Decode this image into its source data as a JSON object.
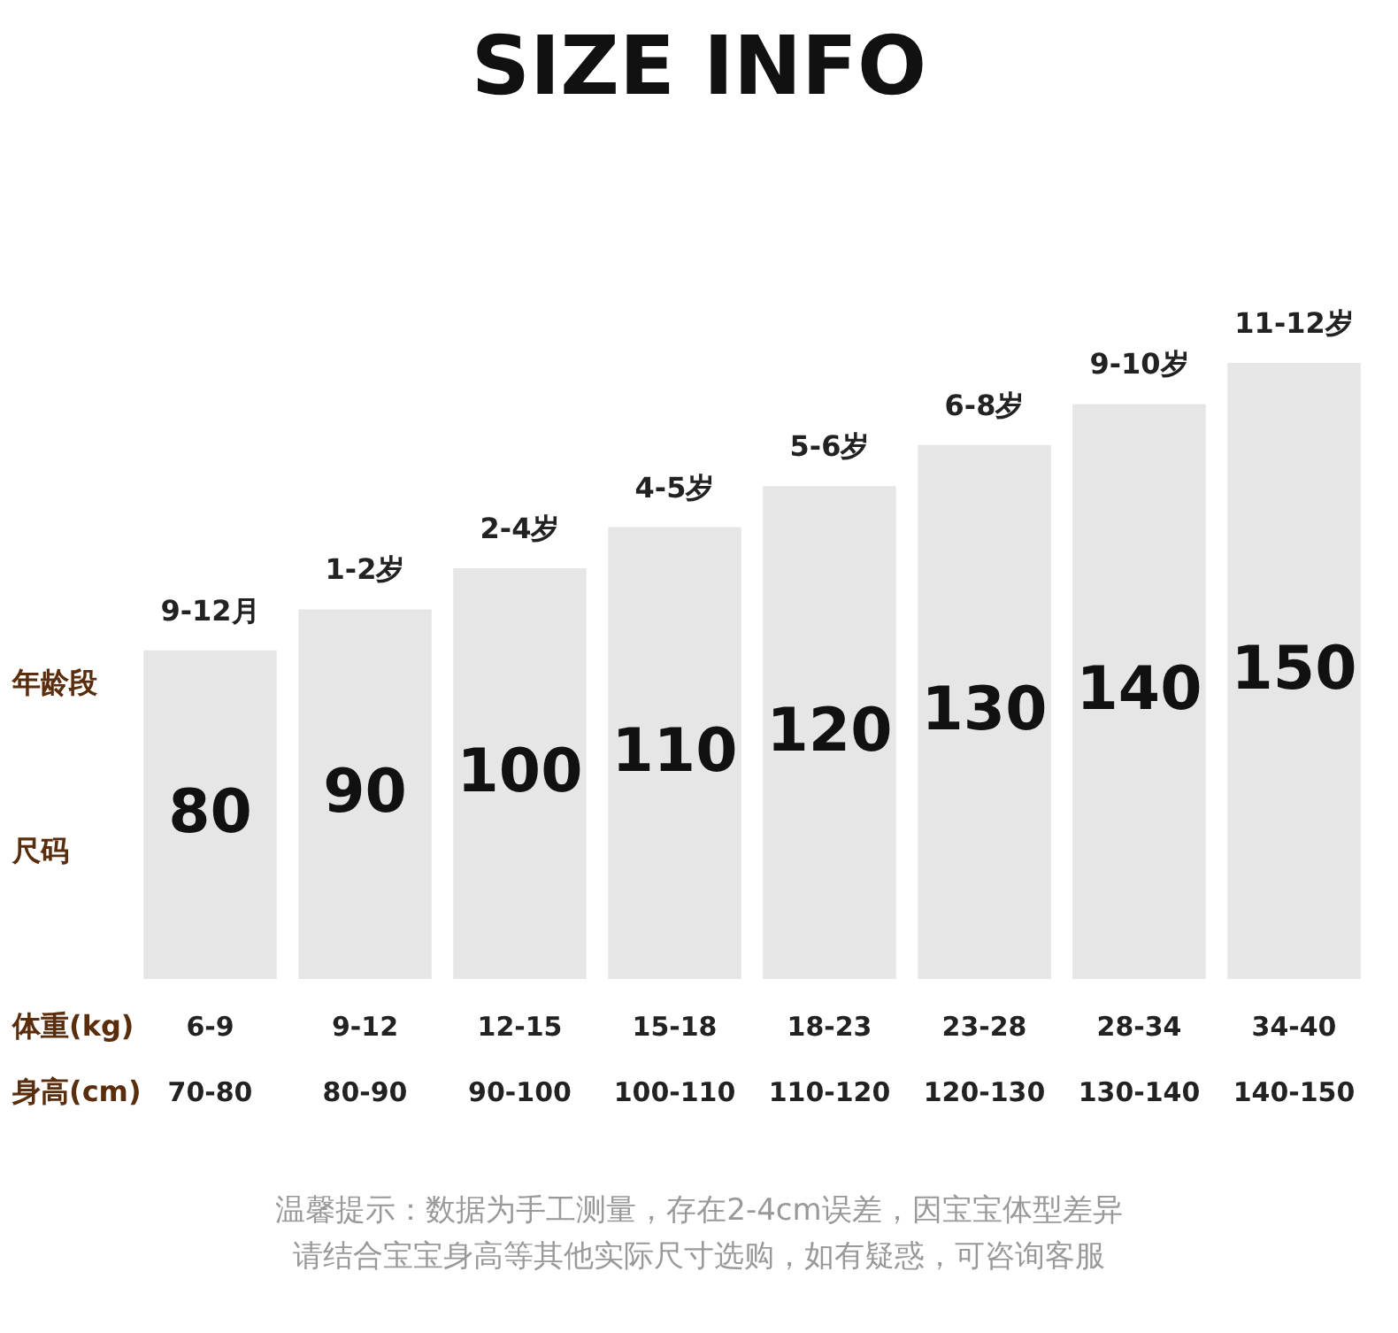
{
  "chart_data": {
    "type": "bar",
    "title": "SIZE INFO",
    "categories": [
      "9-12月",
      "1-2岁",
      "2-4岁",
      "4-5岁",
      "5-6岁",
      "6-8岁",
      "9-10岁",
      "11-12岁"
    ],
    "values": [
      80,
      90,
      100,
      110,
      120,
      130,
      140,
      150
    ],
    "color": "#e6e6e6",
    "data_labels": true,
    "tick_labels": "x",
    "annotations": [
      "年龄段",
      "尺码",
      "体重(kg)",
      "身高(cm)",
      "温馨提示：数据为手工测量，存在2-4cm误差，因宝宝体型差异",
      "请结合宝宝身高等其他实际尺寸选购，如有疑惑，可咨询客服",
      "6-9",
      "9-12",
      "12-15",
      "15-18",
      "18-23",
      "23-28",
      "28-34",
      "34-40",
      "70-80",
      "80-90",
      "90-100",
      "100-110",
      "110-120",
      "120-130",
      "130-140",
      "140-150"
    ]
  }
}
